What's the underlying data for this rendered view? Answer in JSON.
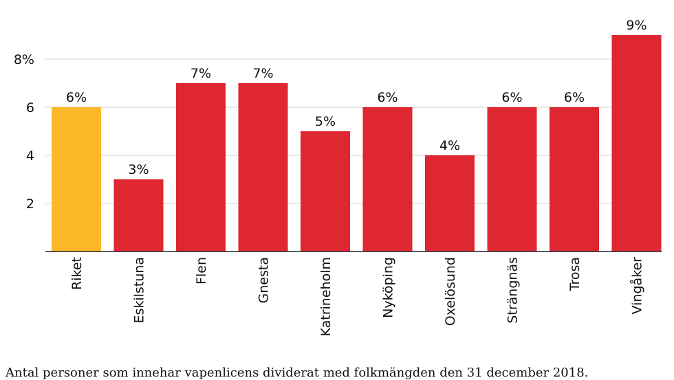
{
  "chart_data": {
    "type": "bar",
    "categories": [
      "Riket",
      "Eskilstuna",
      "Flen",
      "Gnesta",
      "Katrineholm",
      "Nyköping",
      "Oxelösund",
      "Strängnäs",
      "Trosa",
      "Vingåker"
    ],
    "values": [
      6,
      3,
      7,
      7,
      5,
      6,
      4,
      6,
      6,
      9
    ],
    "data_labels": [
      "6%",
      "3%",
      "7%",
      "7%",
      "5%",
      "6%",
      "4%",
      "6%",
      "6%",
      "9%"
    ],
    "y_ticks": [
      2,
      4,
      6,
      8
    ],
    "y_tick_labels": [
      "2",
      "4",
      "6",
      "8%"
    ],
    "ylim": [
      0,
      9.6
    ],
    "grid": true,
    "colors": {
      "highlight": "#FBB829",
      "default": "#DE2730",
      "grid": "#d4d4d4",
      "axis": "#222222"
    },
    "highlight_index": 0
  },
  "caption": "Antal personer som innehar vapenlicens dividerat med folkmängden den 31 december 2018."
}
